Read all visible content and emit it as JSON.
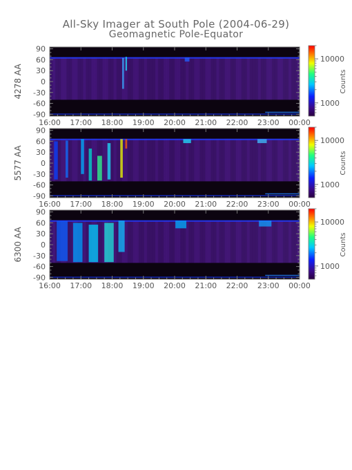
{
  "header": {
    "title": "All-Sky Imager at South Pole (2004-06-29)",
    "subtitle": "Geomagnetic Pole-Equator"
  },
  "chart_data": [
    {
      "type": "heatmap",
      "ylabel": "4278 AA",
      "x_ticks": [
        "16:00",
        "17:00",
        "18:00",
        "19:00",
        "20:00",
        "21:00",
        "22:00",
        "23:00",
        "00:00"
      ],
      "x_range_hours": [
        16,
        24
      ],
      "y_ticks": [
        90,
        60,
        30,
        0,
        -30,
        -60,
        -90
      ],
      "ylim": [
        -95,
        95
      ],
      "colorbar": {
        "label": "Counts",
        "tick_labels": [
          "10000",
          "1000"
        ],
        "ticks": [
          10000,
          1000
        ],
        "scale": "log",
        "range": [
          500,
          20000
        ]
      },
      "data_band_lat": [
        -50,
        67
      ],
      "aurora_level": 0.25
    },
    {
      "type": "heatmap",
      "ylabel": "5577 AA",
      "x_ticks": [
        "16:00",
        "17:00",
        "18:00",
        "19:00",
        "20:00",
        "21:00",
        "22:00",
        "23:00",
        "00:00"
      ],
      "x_range_hours": [
        16,
        24
      ],
      "y_ticks": [
        90,
        60,
        30,
        0,
        -30,
        -60,
        -90
      ],
      "ylim": [
        -95,
        95
      ],
      "colorbar": {
        "label": "Counts",
        "tick_labels": [
          "10000",
          "1000"
        ],
        "ticks": [
          10000,
          1000
        ],
        "scale": "log",
        "range": [
          500,
          20000
        ]
      },
      "data_band_lat": [
        -50,
        67
      ],
      "aurora_level": 0.6
    },
    {
      "type": "heatmap",
      "ylabel": "6300 AA",
      "x_ticks": [
        "16:00",
        "17:00",
        "18:00",
        "19:00",
        "20:00",
        "21:00",
        "22:00",
        "23:00",
        "00:00"
      ],
      "x_range_hours": [
        16,
        24
      ],
      "y_ticks": [
        90,
        60,
        30,
        0,
        -30,
        -60,
        -90
      ],
      "ylim": [
        -95,
        95
      ],
      "colorbar": {
        "label": "Counts",
        "tick_labels": [
          "10000",
          "1000"
        ],
        "ticks": [
          10000,
          1000
        ],
        "scale": "log",
        "range": [
          500,
          20000
        ]
      },
      "data_band_lat": [
        -50,
        67
      ],
      "aurora_level": 0.85
    }
  ]
}
